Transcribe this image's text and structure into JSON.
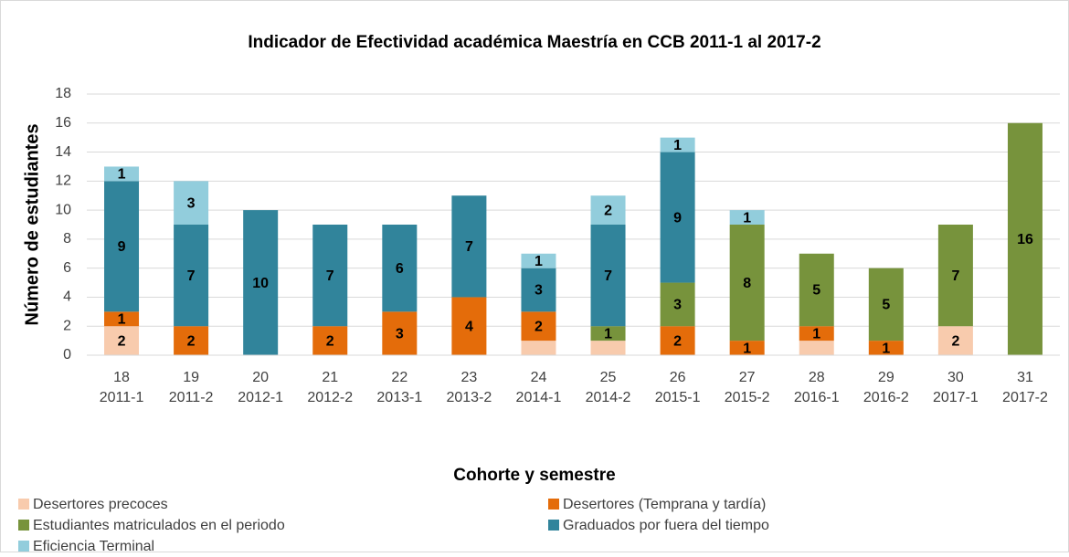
{
  "chart_data": {
    "type": "stacked_bar",
    "title": "Indicador de Efectividad académica Maestría en CCB 2011-1 al 2017-2",
    "xlabel": "Cohorte y semestre",
    "ylabel": "Número de estudiantes",
    "categories": [
      [
        "18",
        "2011-1"
      ],
      [
        "19",
        "2011-2"
      ],
      [
        "20",
        "2012-1"
      ],
      [
        "21",
        "2012-2"
      ],
      [
        "22",
        "2013-1"
      ],
      [
        "23",
        "2013-2"
      ],
      [
        "24",
        "2014-1"
      ],
      [
        "25",
        "2014-2"
      ],
      [
        "26",
        "2015-1"
      ],
      [
        "27",
        "2015-2"
      ],
      [
        "28",
        "2016-1"
      ],
      [
        "29",
        "2016-2"
      ],
      [
        "30",
        "2017-1"
      ],
      [
        "31",
        "2017-2"
      ]
    ],
    "series": [
      {
        "name": "Desertores precoces",
        "color": "#f8cbad",
        "values": [
          2,
          0,
          0,
          0,
          0,
          0,
          1,
          1,
          0,
          0,
          1,
          0,
          2,
          0
        ],
        "value_labels": [
          "2",
          null,
          null,
          null,
          null,
          null,
          null,
          null,
          null,
          null,
          null,
          null,
          "2",
          null
        ]
      },
      {
        "name": "Desertores (Temprana y tardía)",
        "color": "#e46c0a",
        "values": [
          1,
          2,
          0,
          2,
          3,
          4,
          2,
          0,
          2,
          1,
          1,
          1,
          0,
          0
        ],
        "value_labels": [
          "1",
          "2",
          null,
          "2",
          "3",
          "4",
          "2",
          null,
          "2",
          "1",
          "1",
          "1",
          null,
          null
        ]
      },
      {
        "name": "Estudiantes matriculados en el periodo",
        "color": "#77933c",
        "values": [
          0,
          0,
          0,
          0,
          0,
          0,
          0,
          1,
          3,
          8,
          5,
          5,
          7,
          16
        ],
        "value_labels": [
          null,
          null,
          null,
          null,
          null,
          null,
          null,
          "1",
          "3",
          "8",
          "5",
          "5",
          "7",
          "16"
        ]
      },
      {
        "name": "Graduados por fuera del tiempo",
        "color": "#31849b",
        "values": [
          9,
          7,
          10,
          7,
          6,
          7,
          3,
          7,
          9,
          0,
          0,
          0,
          0,
          0
        ],
        "value_labels": [
          "9",
          "7",
          "10",
          "7",
          "6",
          "7",
          "3",
          "7",
          "9",
          null,
          null,
          null,
          null,
          null
        ]
      },
      {
        "name": "Eficiencia Terminal",
        "color": "#92cddc",
        "values": [
          1,
          3,
          0,
          0,
          0,
          0,
          1,
          2,
          1,
          1,
          0,
          0,
          0,
          0
        ],
        "value_labels": [
          "1",
          "3",
          null,
          null,
          null,
          null,
          "1",
          "2",
          "1",
          "1",
          null,
          null,
          null,
          null
        ]
      }
    ],
    "ylim": [
      0,
      18
    ],
    "yticks": [
      0,
      2,
      4,
      6,
      8,
      10,
      12,
      14,
      16,
      18
    ],
    "grid": true
  }
}
